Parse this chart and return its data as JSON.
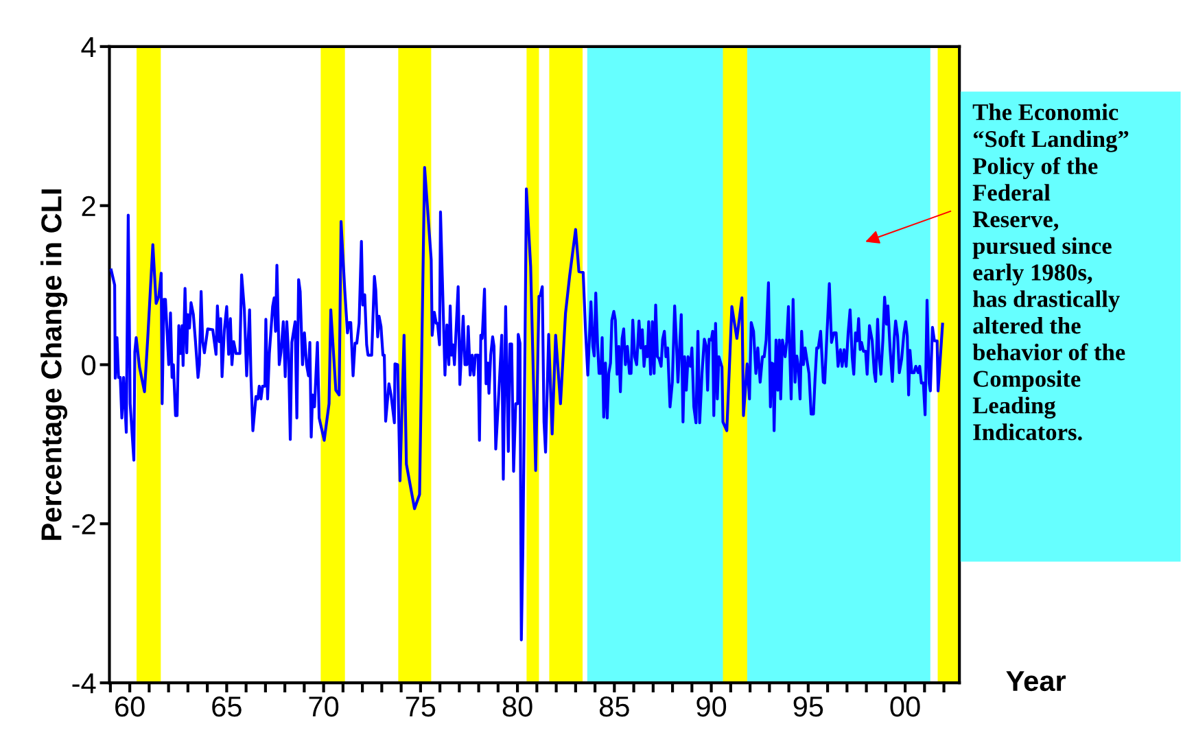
{
  "chart_data": {
    "type": "line",
    "xlabel": "Year",
    "ylabel": "Percentage Change in CLI",
    "xlim": [
      1958.95,
      2002.8
    ],
    "ylim": [
      -4,
      4
    ],
    "yticks": [
      -4,
      -2,
      0,
      2,
      4
    ],
    "xticks": [
      {
        "value": 1959,
        "label": null
      },
      {
        "value": 1960,
        "label": "60"
      },
      {
        "value": 1961,
        "label": null
      },
      {
        "value": 1962,
        "label": null
      },
      {
        "value": 1963,
        "label": null
      },
      {
        "value": 1964,
        "label": null
      },
      {
        "value": 1965,
        "label": "65"
      },
      {
        "value": 1966,
        "label": null
      },
      {
        "value": 1967,
        "label": null
      },
      {
        "value": 1968,
        "label": null
      },
      {
        "value": 1969,
        "label": null
      },
      {
        "value": 1970,
        "label": "70"
      },
      {
        "value": 1971,
        "label": null
      },
      {
        "value": 1972,
        "label": null
      },
      {
        "value": 1973,
        "label": null
      },
      {
        "value": 1974,
        "label": null
      },
      {
        "value": 1975,
        "label": "75"
      },
      {
        "value": 1976,
        "label": null
      },
      {
        "value": 1977,
        "label": null
      },
      {
        "value": 1978,
        "label": null
      },
      {
        "value": 1979,
        "label": null
      },
      {
        "value": 1980,
        "label": "80"
      },
      {
        "value": 1981,
        "label": null
      },
      {
        "value": 1982,
        "label": null
      },
      {
        "value": 1983,
        "label": null
      },
      {
        "value": 1984,
        "label": null
      },
      {
        "value": 1985,
        "label": "85"
      },
      {
        "value": 1986,
        "label": null
      },
      {
        "value": 1987,
        "label": null
      },
      {
        "value": 1988,
        "label": null
      },
      {
        "value": 1989,
        "label": null
      },
      {
        "value": 1990,
        "label": "90"
      },
      {
        "value": 1991,
        "label": null
      },
      {
        "value": 1992,
        "label": null
      },
      {
        "value": 1993,
        "label": null
      },
      {
        "value": 1994,
        "label": null
      },
      {
        "value": 1995,
        "label": "95"
      },
      {
        "value": 1996,
        "label": null
      },
      {
        "value": 1997,
        "label": null
      },
      {
        "value": 1998,
        "label": null
      },
      {
        "value": 1999,
        "label": null
      },
      {
        "value": 2000,
        "label": "00"
      },
      {
        "value": 2001,
        "label": null
      },
      {
        "value": 2002,
        "label": null
      }
    ],
    "grid": false,
    "legend": false,
    "marker": "none",
    "line_style": "solid",
    "bands": [
      {
        "axis": "x",
        "from": 1983.6,
        "to": 2001.3,
        "color": "#66ffff"
      },
      {
        "axis": "x",
        "from": 1960.35,
        "to": 1961.6,
        "color": "#ffff00"
      },
      {
        "axis": "x",
        "from": 1969.85,
        "to": 1971.1,
        "color": "#ffff00"
      },
      {
        "axis": "x",
        "from": 1973.85,
        "to": 1975.55,
        "color": "#ffff00"
      },
      {
        "axis": "x",
        "from": 1980.47,
        "to": 1981.11,
        "color": "#ffff00"
      },
      {
        "axis": "x",
        "from": 1981.64,
        "to": 1983.36,
        "color": "#ffff00"
      },
      {
        "axis": "x",
        "from": 1990.6,
        "to": 1991.85,
        "color": "#ffff00"
      },
      {
        "axis": "x",
        "from": 2001.68,
        "to": 2002.8,
        "color": "#ffff00"
      }
    ],
    "annotations": [
      "The Economic\n“Soft Landing”\nPolicy of the\nFederal\nReserve,\npursued since\nearly 1980s,\nhas drastically\naltered the\nbehavior of the\nComposite\nLeading\nIndicators."
    ],
    "series": [
      {
        "color": "#0000ff",
        "x": [
          1959.04,
          1959.22,
          1959.25,
          1959.34,
          1959.42,
          1959.51,
          1959.59,
          1959.68,
          1959.82,
          1959.92,
          1960.02,
          1960.21,
          1960.26,
          1960.33,
          1960.5,
          1960.76,
          1960.93,
          1961.19,
          1961.36,
          1961.5,
          1961.62,
          1961.67,
          1961.76,
          1961.84,
          1962.01,
          1962.1,
          1962.18,
          1962.25,
          1962.36,
          1962.44,
          1962.53,
          1962.61,
          1962.7,
          1962.75,
          1962.85,
          1962.94,
          1962.99,
          1963.08,
          1963.16,
          1963.28,
          1963.39,
          1963.52,
          1963.59,
          1963.68,
          1963.76,
          1963.85,
          1964.02,
          1964.28,
          1964.45,
          1964.52,
          1964.62,
          1964.69,
          1964.76,
          1964.88,
          1965.0,
          1965.1,
          1965.19,
          1965.27,
          1965.36,
          1965.48,
          1965.68,
          1965.77,
          1965.91,
          1966.03,
          1966.18,
          1966.25,
          1966.35,
          1966.51,
          1966.61,
          1966.68,
          1966.77,
          1966.85,
          1966.97,
          1967.02,
          1967.11,
          1967.2,
          1967.37,
          1967.45,
          1967.52,
          1967.59,
          1967.71,
          1967.8,
          1967.92,
          1968.02,
          1968.1,
          1968.19,
          1968.28,
          1968.36,
          1968.53,
          1968.62,
          1968.71,
          1968.79,
          1968.91,
          1969.01,
          1969.12,
          1969.22,
          1969.29,
          1969.36,
          1969.43,
          1969.53,
          1969.68,
          1969.77,
          1970.03,
          1970.28,
          1970.37,
          1970.63,
          1970.8,
          1970.9,
          1971.09,
          1971.23,
          1971.31,
          1971.4,
          1971.52,
          1971.62,
          1971.71,
          1971.83,
          1971.95,
          1972.02,
          1972.12,
          1972.22,
          1972.29,
          1972.48,
          1972.62,
          1972.69,
          1972.79,
          1972.86,
          1972.96,
          1973.06,
          1973.13,
          1973.2,
          1973.37,
          1973.48,
          1973.65,
          1973.68,
          1973.82,
          1973.94,
          1974.15,
          1974.27,
          1974.69,
          1974.95,
          1975.21,
          1975.55,
          1975.6,
          1975.71,
          1975.81,
          1975.88,
          1975.98,
          1976.03,
          1976.12,
          1976.26,
          1976.36,
          1976.46,
          1976.53,
          1976.6,
          1976.67,
          1976.75,
          1976.94,
          1977.03,
          1977.2,
          1977.29,
          1977.39,
          1977.46,
          1977.56,
          1977.66,
          1977.75,
          1977.83,
          1977.97,
          1978.04,
          1978.11,
          1978.18,
          1978.3,
          1978.38,
          1978.47,
          1978.53,
          1978.62,
          1978.72,
          1978.79,
          1978.88,
          1979.01,
          1979.19,
          1979.27,
          1979.39,
          1979.53,
          1979.61,
          1979.7,
          1979.8,
          1979.91,
          1980.01,
          1980.04,
          1980.13,
          1980.2,
          1980.28,
          1980.39,
          1980.46,
          1980.68,
          1980.94,
          1981.11,
          1981.18,
          1981.28,
          1981.37,
          1981.45,
          1981.61,
          1981.79,
          1981.97,
          1982.22,
          1982.48,
          1982.69,
          1983.0,
          1983.17,
          1983.39,
          1983.51,
          1983.63,
          1983.79,
          1983.89,
          1983.96,
          1984.04,
          1984.13,
          1984.21,
          1984.3,
          1984.37,
          1984.45,
          1984.54,
          1984.63,
          1984.71,
          1984.8,
          1984.87,
          1984.97,
          1985.05,
          1985.14,
          1985.23,
          1985.31,
          1985.4,
          1985.48,
          1985.57,
          1985.67,
          1985.78,
          1985.86,
          1985.95,
          1986.05,
          1986.15,
          1986.27,
          1986.36,
          1986.44,
          1986.53,
          1986.62,
          1986.7,
          1986.77,
          1986.87,
          1986.96,
          1987.05,
          1987.13,
          1987.22,
          1987.3,
          1987.41,
          1987.49,
          1987.58,
          1987.66,
          1987.75,
          1987.87,
          1987.99,
          1988.11,
          1988.19,
          1988.28,
          1988.45,
          1988.54,
          1988.62,
          1988.71,
          1988.8,
          1988.92,
          1989.0,
          1989.1,
          1989.21,
          1989.31,
          1989.4,
          1989.52,
          1989.64,
          1989.74,
          1989.81,
          1989.89,
          1990.0,
          1990.07,
          1990.13,
          1990.22,
          1990.31,
          1990.39,
          1990.55,
          1990.6,
          1990.8,
          1991.06,
          1991.32,
          1991.58,
          1991.66,
          1991.85,
          1991.97,
          1992.06,
          1992.18,
          1992.3,
          1992.4,
          1992.52,
          1992.64,
          1992.73,
          1992.83,
          1992.95,
          1993.05,
          1993.12,
          1993.19,
          1993.24,
          1993.34,
          1993.43,
          1993.51,
          1993.58,
          1993.67,
          1993.81,
          1993.89,
          1993.98,
          1994.12,
          1994.22,
          1994.32,
          1994.41,
          1994.49,
          1994.58,
          1994.66,
          1994.75,
          1994.84,
          1995.04,
          1995.15,
          1995.27,
          1995.35,
          1995.44,
          1995.52,
          1995.64,
          1995.78,
          1995.85,
          1995.97,
          1996.09,
          1996.2,
          1996.32,
          1996.44,
          1996.54,
          1996.66,
          1996.75,
          1996.85,
          1996.96,
          1997.06,
          1997.16,
          1997.27,
          1997.35,
          1997.44,
          1997.53,
          1997.6,
          1997.68,
          1997.75,
          1997.85,
          1997.96,
          1998.04,
          1998.16,
          1998.3,
          1998.41,
          1998.48,
          1998.58,
          1998.66,
          1998.75,
          1998.85,
          1998.94,
          1999.04,
          1999.11,
          1999.22,
          1999.34,
          1999.44,
          1999.51,
          1999.61,
          1999.7,
          1999.82,
          1999.94,
          2000.03,
          2000.11,
          2000.18,
          2000.25,
          2000.34,
          2000.46,
          2000.55,
          2000.67,
          2000.75,
          2000.84,
          2000.94,
          2001.03,
          2001.13,
          2001.24,
          2001.3,
          2001.41,
          2001.51,
          2001.65,
          2001.7,
          2001.93
        ],
        "values": [
          1.19,
          1.0,
          -0.17,
          0.34,
          -0.16,
          -0.16,
          -0.67,
          -0.16,
          -0.85,
          1.88,
          -0.49,
          -1.2,
          0.16,
          0.34,
          -0.03,
          -0.34,
          0.35,
          1.51,
          0.77,
          0.86,
          1.15,
          -0.49,
          0.82,
          0.82,
          0.0,
          0.65,
          -0.16,
          0.0,
          -0.64,
          -0.64,
          0.49,
          0.14,
          0.49,
          -0.01,
          0.96,
          0.15,
          0.63,
          0.46,
          0.78,
          0.63,
          0.29,
          -0.16,
          0.0,
          0.92,
          0.29,
          0.15,
          0.45,
          0.44,
          0.13,
          0.74,
          0.29,
          0.58,
          -0.15,
          0.44,
          0.73,
          0.13,
          0.58,
          0.0,
          0.29,
          0.14,
          0.14,
          1.13,
          0.69,
          -0.14,
          0.69,
          -0.14,
          -0.83,
          -0.4,
          -0.43,
          -0.27,
          -0.43,
          -0.27,
          -0.27,
          0.57,
          -0.43,
          0.14,
          0.73,
          0.84,
          0.42,
          1.25,
          0.0,
          0.16,
          0.54,
          -0.15,
          0.54,
          0.14,
          -0.94,
          0.28,
          0.54,
          -0.67,
          1.07,
          0.92,
          0.0,
          0.4,
          0.0,
          -0.14,
          0.28,
          -0.91,
          -0.38,
          -0.53,
          0.28,
          -0.67,
          -0.95,
          -0.49,
          0.69,
          -0.32,
          -0.38,
          1.8,
          0.94,
          0.4,
          0.53,
          0.53,
          -0.14,
          0.27,
          0.27,
          0.52,
          1.55,
          0.75,
          0.88,
          0.25,
          0.12,
          0.12,
          1.11,
          0.94,
          0.35,
          0.61,
          0.48,
          0.12,
          0.12,
          -0.71,
          -0.24,
          -0.38,
          -0.73,
          0.01,
          0.0,
          -1.46,
          0.37,
          -1.25,
          -1.81,
          -1.63,
          2.48,
          1.32,
          0.37,
          0.66,
          0.52,
          0.52,
          0.25,
          1.92,
          1.12,
          -0.13,
          0.5,
          0.0,
          0.74,
          0.12,
          0.25,
          0.0,
          0.98,
          -0.25,
          0.61,
          0.0,
          0.0,
          0.48,
          -0.13,
          0.12,
          -0.13,
          0.12,
          0.12,
          -0.95,
          0.37,
          0.33,
          0.95,
          -0.24,
          0.02,
          -0.36,
          0.12,
          0.35,
          0.23,
          -1.06,
          -0.49,
          0.37,
          -1.44,
          0.73,
          -1.09,
          0.26,
          0.26,
          -1.34,
          -0.49,
          -0.49,
          0.38,
          0.27,
          -3.46,
          -2.3,
          0.27,
          2.21,
          1.24,
          -1.33,
          0.86,
          0.87,
          0.98,
          -0.72,
          -1.1,
          0.38,
          -0.87,
          0.37,
          -0.49,
          0.65,
          1.11,
          1.7,
          1.17,
          1.16,
          0.44,
          -0.13,
          0.79,
          0.23,
          0.11,
          0.9,
          0.27,
          -0.11,
          -0.11,
          0.34,
          -0.66,
          0.02,
          -0.67,
          -0.11,
          0.02,
          0.56,
          0.67,
          0.56,
          -0.12,
          0.23,
          -0.34,
          0.33,
          0.45,
          0.0,
          0.23,
          -0.11,
          -0.11,
          0.56,
          0.1,
          0.0,
          0.55,
          0.21,
          0.44,
          -0.02,
          0.23,
          0.1,
          0.54,
          -0.12,
          0.54,
          -0.11,
          0.75,
          0.1,
          0.08,
          -0.02,
          0.32,
          0.42,
          0.1,
          0.21,
          -0.53,
          -0.22,
          0.74,
          0.33,
          -0.22,
          0.63,
          -0.72,
          0.1,
          -0.32,
          0.1,
          -0.02,
          0.21,
          -0.53,
          -0.73,
          0.42,
          -0.73,
          -0.11,
          0.32,
          0.23,
          -0.32,
          0.32,
          0.31,
          0.42,
          -0.64,
          0.52,
          -0.43,
          0.1,
          -0.03,
          -0.72,
          -0.83,
          0.73,
          0.33,
          0.84,
          -0.64,
          0.01,
          -0.43,
          0.53,
          0.42,
          -0.11,
          0.21,
          -0.22,
          0.1,
          0.1,
          0.31,
          1.03,
          -0.53,
          0.02,
          0.01,
          -0.83,
          0.31,
          -0.32,
          0.31,
          -0.43,
          0.31,
          0.1,
          0.29,
          0.73,
          -0.43,
          0.82,
          -0.22,
          0.11,
          -0.02,
          -0.43,
          0.42,
          0.0,
          0.21,
          -0.11,
          -0.62,
          -0.62,
          -0.19,
          0.21,
          0.21,
          0.42,
          -0.22,
          -0.23,
          0.4,
          1.02,
          0.28,
          0.4,
          0.4,
          -0.02,
          0.19,
          -0.02,
          0.19,
          -0.02,
          0.4,
          0.69,
          0.09,
          -0.12,
          0.4,
          0.3,
          0.58,
          0.19,
          0.28,
          0.17,
          0.17,
          -0.12,
          0.49,
          0.3,
          -0.1,
          -0.21,
          0.57,
          0.09,
          -0.12,
          0.3,
          0.85,
          0.51,
          0.74,
          0.21,
          -0.21,
          0.34,
          0.55,
          0.36,
          -0.1,
          0.07,
          0.4,
          0.54,
          0.36,
          -0.38,
          0.18,
          -0.1,
          -0.1,
          -0.02,
          -0.1,
          -0.02,
          -0.23,
          -0.23,
          -0.63,
          0.81,
          -0.23,
          -0.33,
          0.47,
          0.3,
          0.3,
          -0.33,
          0.51
        ]
      }
    ]
  }
}
